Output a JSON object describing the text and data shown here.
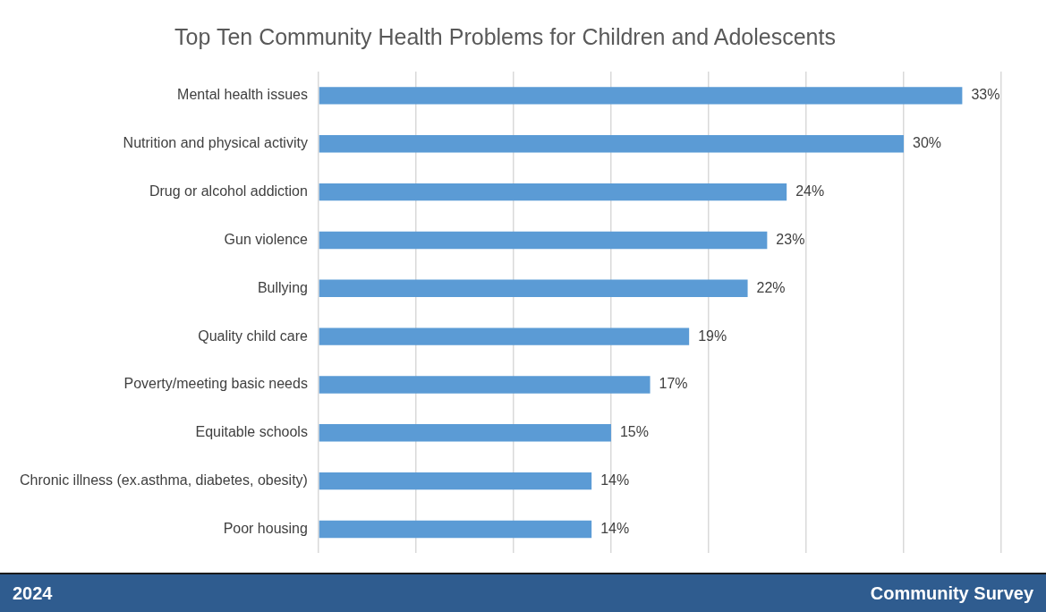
{
  "chart_data": {
    "type": "bar",
    "orientation": "horizontal",
    "title": "Top Ten Community Health Problems for Children and Adolescents",
    "categories": [
      "Mental health issues",
      "Nutrition and physical activity",
      "Drug or alcohol addiction",
      "Gun violence",
      "Bullying",
      "Quality child care",
      "Poverty/meeting basic needs",
      "Equitable schools",
      "Chronic illness (ex.asthma, diabetes, obesity)",
      "Poor housing"
    ],
    "values": [
      33,
      30,
      24,
      23,
      22,
      19,
      17,
      15,
      14,
      14
    ],
    "value_labels": [
      "33%",
      "30%",
      "24%",
      "23%",
      "22%",
      "19%",
      "17%",
      "15%",
      "14%",
      "14%"
    ],
    "color": "#5b9bd5",
    "xlim": [
      0,
      35
    ],
    "xticks": [
      {
        "value": 0,
        "label": null
      },
      {
        "value": 5,
        "label": null
      },
      {
        "value": 10,
        "label": null
      },
      {
        "value": 15,
        "label": null
      },
      {
        "value": 20,
        "label": null
      },
      {
        "value": 25,
        "label": null
      },
      {
        "value": 30,
        "label": null
      },
      {
        "value": 35,
        "label": null
      }
    ],
    "grid": "x",
    "legend": false,
    "tick_labels": "y",
    "annotations": [
      "2024",
      "Community Survey"
    ]
  }
}
